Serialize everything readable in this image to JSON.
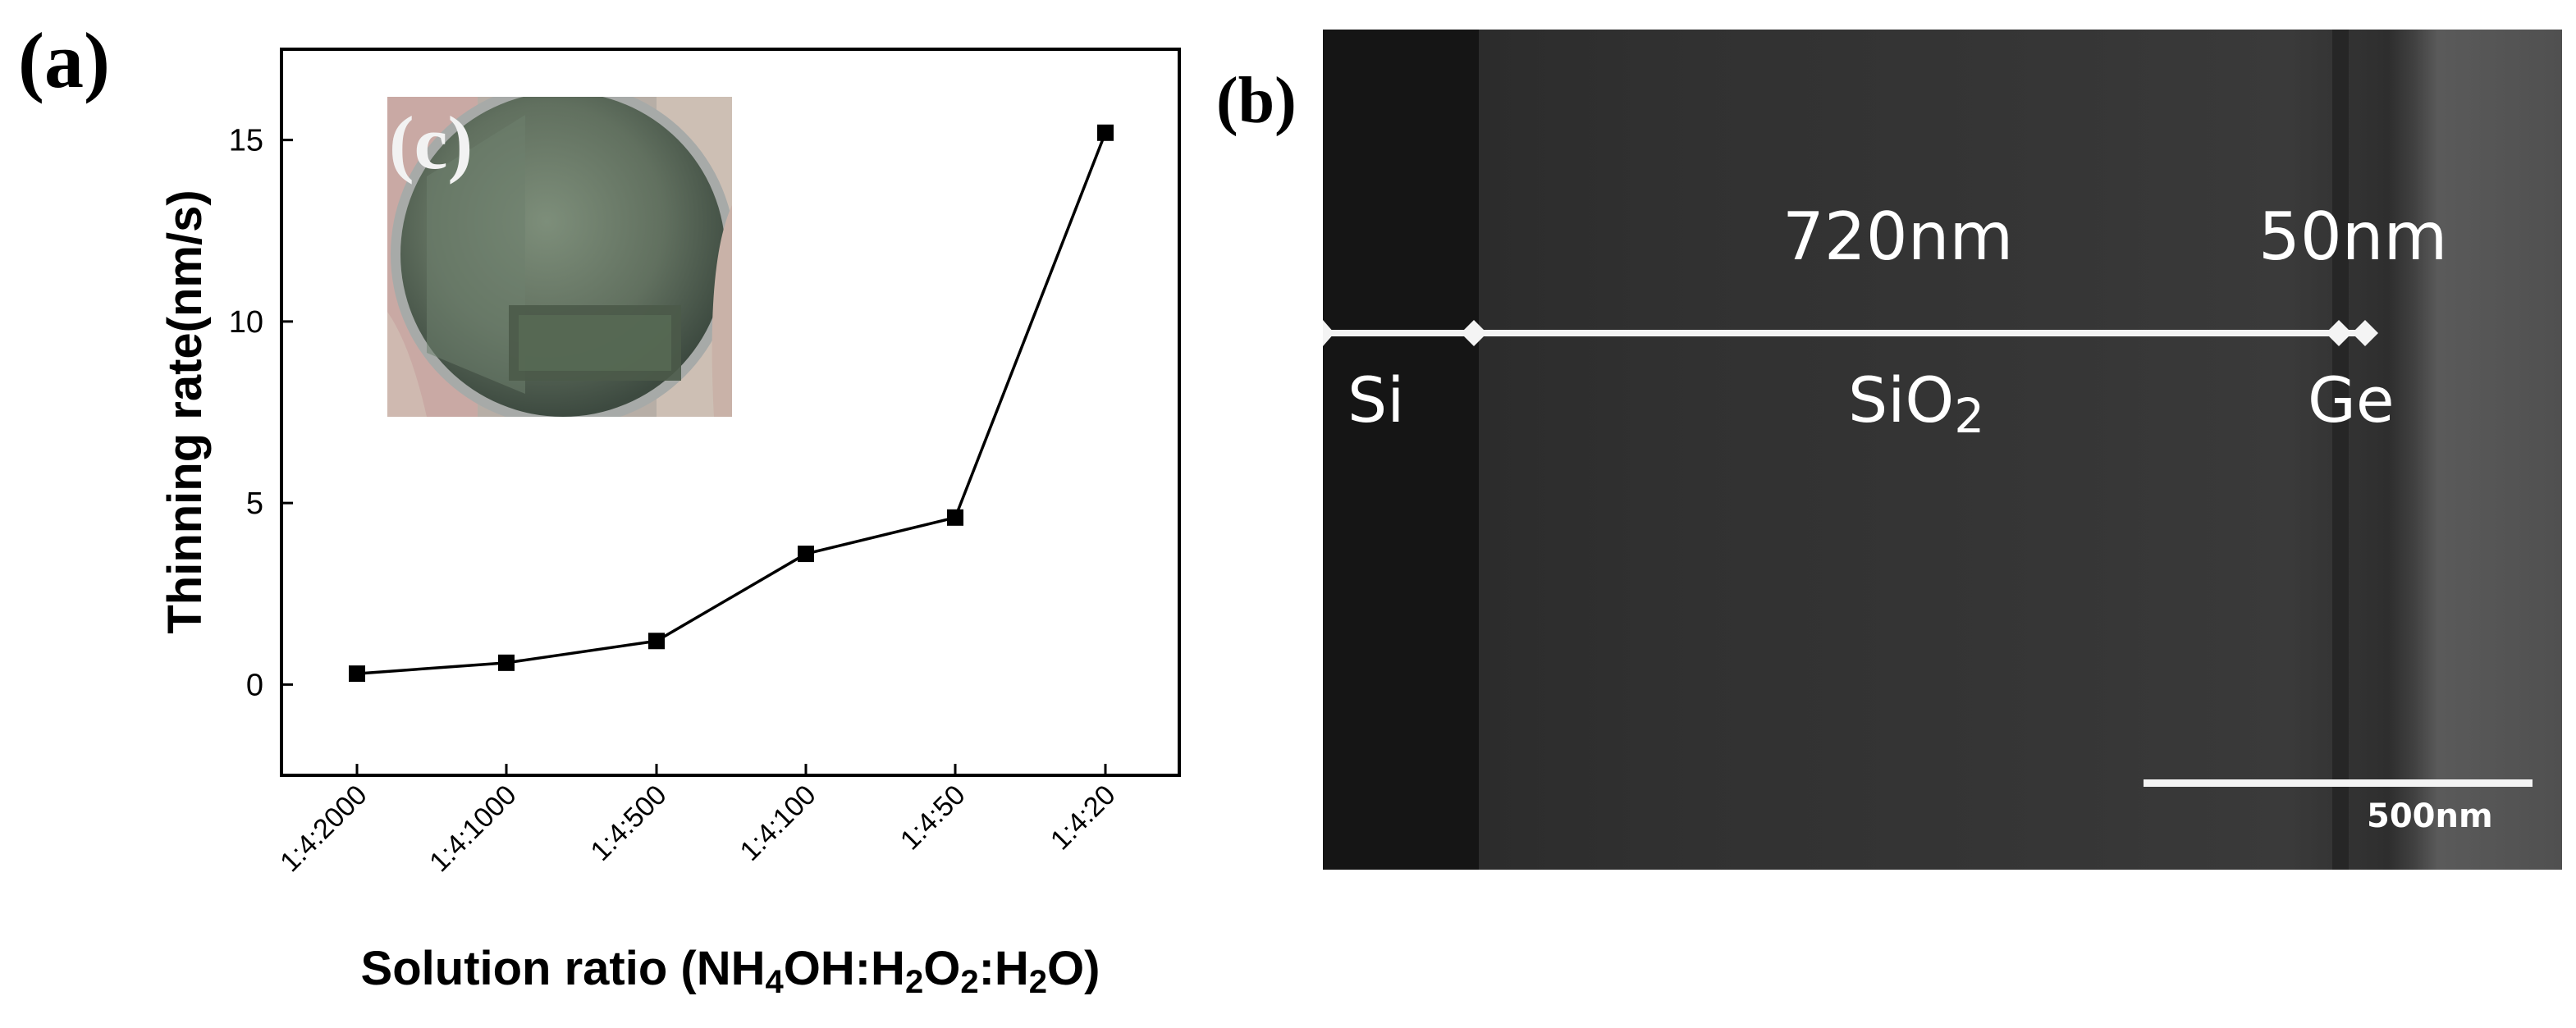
{
  "panels": {
    "a_label": "(a)",
    "b_label": "(b)",
    "c_label": "(c)"
  },
  "chart_data": {
    "type": "line",
    "title": "",
    "xlabel_parts": [
      {
        "t": "Solution ratio (NH"
      },
      {
        "t": "4",
        "sub": true
      },
      {
        "t": "OH:H"
      },
      {
        "t": "2",
        "sub": true
      },
      {
        "t": "O"
      },
      {
        "t": "2",
        "sub": true
      },
      {
        "t": ":H"
      },
      {
        "t": "2",
        "sub": true
      },
      {
        "t": "O)"
      }
    ],
    "ylabel": "Thinning rate(nm/s)",
    "categories": [
      "1:4:2000",
      "1:4:1000",
      "1:4:500",
      "1:4:100",
      "1:4:50",
      "1:4:20"
    ],
    "values": [
      0.3,
      0.6,
      1.2,
      3.6,
      4.6,
      15.2
    ],
    "ylim": [
      -2.5,
      17.5
    ],
    "yticks": [
      0,
      5,
      10,
      15
    ],
    "grid": false,
    "marker": "square",
    "line_color": "#000000"
  },
  "sem": {
    "thickness_sio2": "720nm",
    "thickness_ge": "50nm",
    "layer_si": "Si",
    "layer_sio2": "SiO",
    "layer_sio2_sub": "2",
    "layer_ge": "Ge",
    "scale_bar": "500nm"
  },
  "inset": {
    "description_icon": "wafer-photo-icon"
  }
}
